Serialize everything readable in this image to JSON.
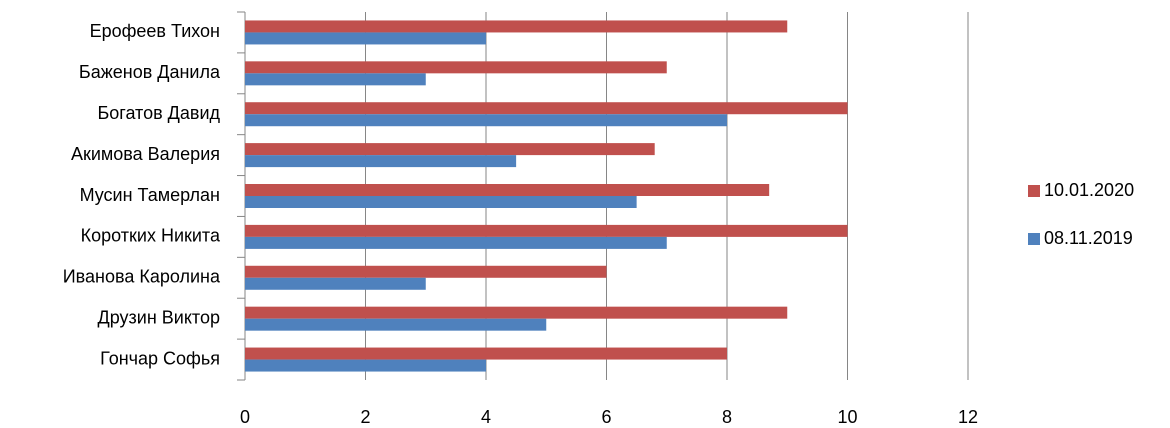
{
  "chart_data": {
    "type": "hbar",
    "categories": [
      "Ерофеев Тихон",
      "Баженов Данила",
      "Богатов Давид",
      "Акимова Валерия",
      "Мусин Тамерлан",
      "Коротких Никита",
      "Иванова Каролина",
      "Друзин Виктор",
      "Гончар Софья"
    ],
    "series": [
      {
        "name": "10.01.2020",
        "color": "#c0504d",
        "values": [
          9,
          7,
          10,
          6.8,
          8.7,
          10,
          6,
          9,
          8
        ]
      },
      {
        "name": "08.11.2019",
        "color": "#4f81bd",
        "values": [
          4,
          3,
          8,
          4.5,
          6.5,
          7,
          3,
          5,
          4
        ]
      }
    ],
    "xlim": [
      0,
      12
    ],
    "xticks": [
      0,
      2,
      4,
      6,
      8,
      10,
      12
    ],
    "grid": true,
    "legend": "right"
  }
}
